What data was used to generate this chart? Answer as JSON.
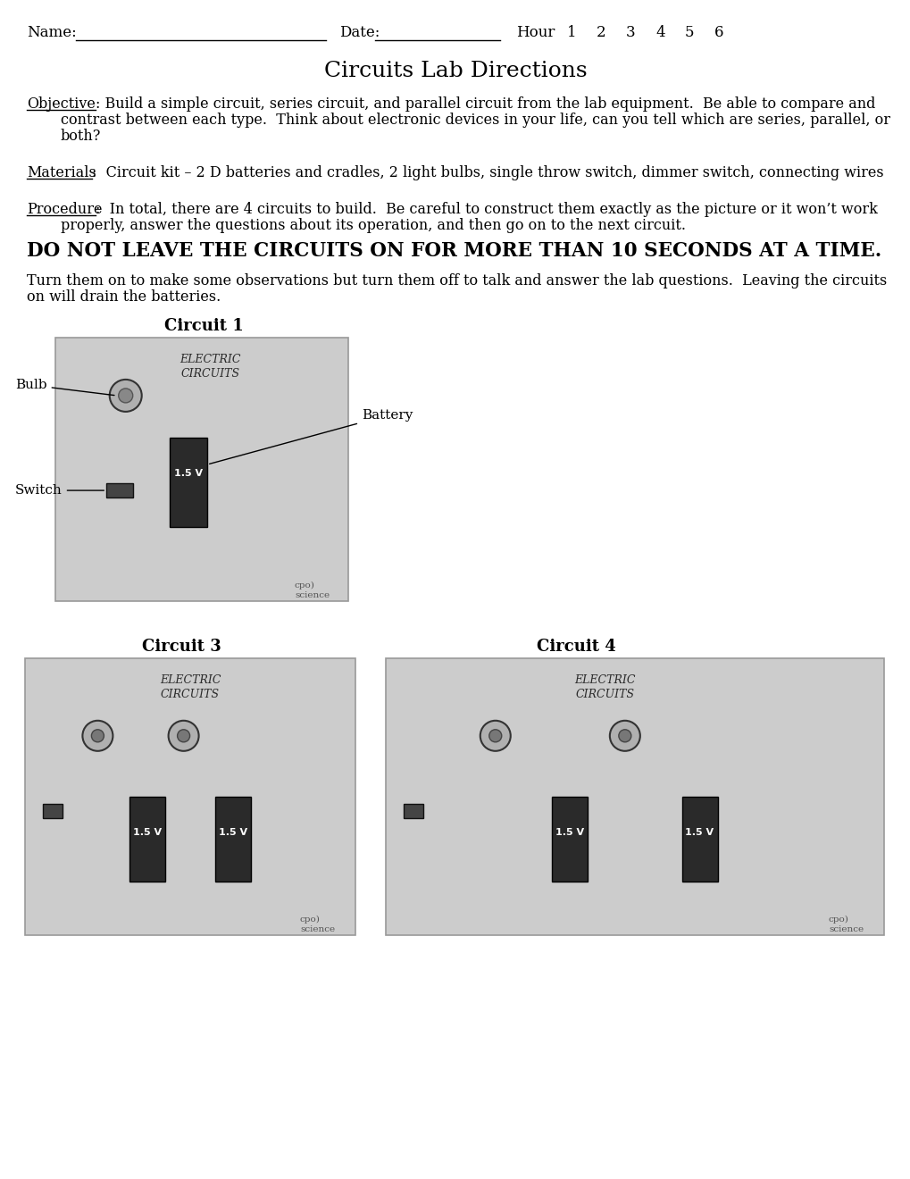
{
  "bg_color": "#ffffff",
  "title": "Circuits Lab Directions",
  "title_fontsize": 18,
  "header_fontsize": 12,
  "body_fontsize": 11.5,
  "hour_numbers": [
    "1",
    "2",
    "3",
    "4",
    "5",
    "6"
  ],
  "obj_label": "Objective",
  "obj_line1": ": Build a simple circuit, series circuit, and parallel circuit from the lab equipment.  Be able to compare and",
  "obj_line2": "contrast between each type.  Think about electronic devices in your life, can you tell which are series, parallel, or",
  "obj_line3": "both?",
  "mat_label": "Materials",
  "mat_text": ":  Circuit kit – 2 D batteries and cradles, 2 light bulbs, single throw switch, dimmer switch, connecting wires",
  "proc_label": "Procedure",
  "proc_line1": ":  In total, there are 4 circuits to build.  Be careful to construct them exactly as the picture or it won’t work",
  "proc_line2": "properly, answer the questions about its operation, and then go on to the next circuit.",
  "warning": "DO NOT LEAVE THE CIRCUITS ON FOR MORE THAN 10 SECONDS AT A TIME.",
  "warning_fontsize": 15.5,
  "follow1": "Turn them on to make some observations but turn them off to talk and answer the lab questions.  Leaving the circuits",
  "follow2": "on will drain the batteries.",
  "c1_label": "Circuit 1",
  "c3_label": "Circuit 3",
  "c4_label": "Circuit 4",
  "gray_light": "#cccccc",
  "gray_dark": "#aaaaaa",
  "battery_color": "#2a2a2a",
  "wire_color": "#111111"
}
